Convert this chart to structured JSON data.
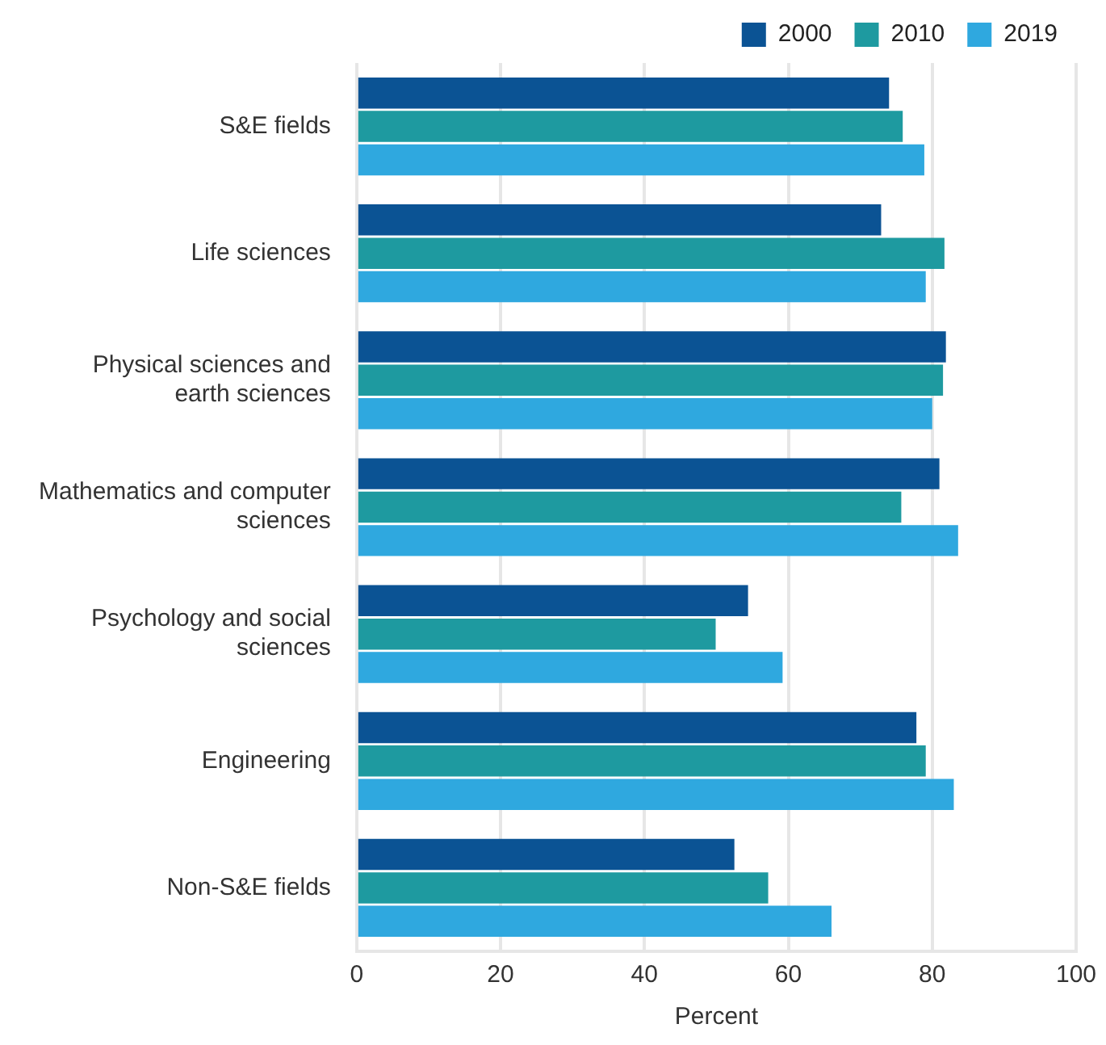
{
  "chart_data": {
    "type": "bar",
    "orientation": "horizontal",
    "xlabel": "Percent",
    "categories": [
      "S&E fields",
      "Life sciences",
      "Physical sciences and earth sciences",
      "Mathematics and computer sciences",
      "Psychology and social sciences",
      "Engineering",
      "Non-S&E fields"
    ],
    "series": [
      {
        "name": "2000",
        "color": "#0b5394",
        "values": [
          74.0,
          72.9,
          81.9,
          81.0,
          54.4,
          77.8,
          52.5
        ]
      },
      {
        "name": "2010",
        "color": "#1e9aa0",
        "values": [
          75.9,
          81.7,
          81.5,
          75.7,
          49.9,
          79.1,
          57.2
        ]
      },
      {
        "name": "2019",
        "color": "#2fa8df",
        "values": [
          78.9,
          79.1,
          80.0,
          83.6,
          59.2,
          83.0,
          66.0
        ]
      }
    ],
    "xlim": [
      0,
      100
    ],
    "xticks": [
      0,
      20,
      40,
      60,
      80,
      100
    ],
    "grid": "x",
    "legend": "top right"
  }
}
